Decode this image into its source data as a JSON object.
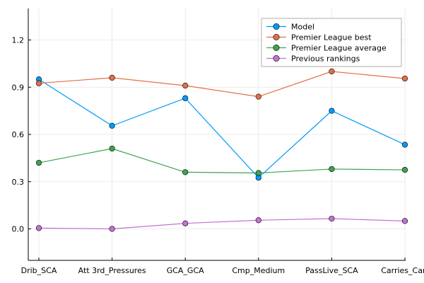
{
  "chart_data": {
    "type": "line",
    "title": "",
    "xlabel": "",
    "ylabel": "",
    "categories": [
      "Drib_SCA",
      "Att 3rd_Pressures",
      "GCA_GCA",
      "Cmp_Medium",
      "PassLive_SCA",
      "Carries_Carr"
    ],
    "ylim": [
      -0.2,
      1.4
    ],
    "yticks": [
      0.0,
      0.3,
      0.6,
      0.9,
      1.2
    ],
    "ytick_labels": [
      "0.0",
      "0.3",
      "0.6",
      "0.9",
      "1.2"
    ],
    "grid": true,
    "legend_position": "top-right",
    "series": [
      {
        "name": "Model",
        "color": "#009AFA",
        "values": [
          0.95,
          0.655,
          0.83,
          0.325,
          0.75,
          0.535
        ]
      },
      {
        "name": "Premier League best",
        "color": "#E36F47",
        "values": [
          0.925,
          0.96,
          0.91,
          0.84,
          1.0,
          0.955
        ]
      },
      {
        "name": "Premier League average",
        "color": "#3EA44E",
        "values": [
          0.42,
          0.51,
          0.36,
          0.355,
          0.38,
          0.375
        ]
      },
      {
        "name": "Previous rankings",
        "color": "#C371D2",
        "values": [
          0.005,
          0.0,
          0.035,
          0.055,
          0.065,
          0.05
        ]
      }
    ]
  }
}
